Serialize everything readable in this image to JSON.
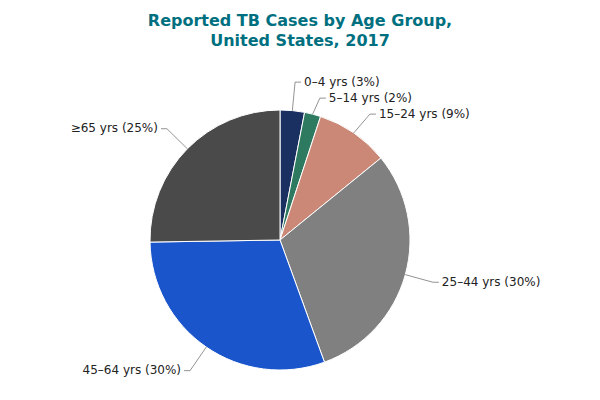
{
  "chart_data": {
    "type": "pie",
    "title": "Reported TB Cases by Age Group,\nUnited States, 2017",
    "title_color": "#007080",
    "categories": [
      "0–4 yrs (3%)",
      "5–14 yrs (2%)",
      "15–24 yrs (9%)",
      "25–44 yrs  (30%)",
      "45–64 yrs (30%)",
      "≥65 yrs (25%)"
    ],
    "values": [
      3,
      2,
      9,
      30,
      30,
      25
    ],
    "colors": [
      "#1a3060",
      "#2e7a60",
      "#cc8877",
      "#808080",
      "#1a55cc",
      "#4a4a4a"
    ]
  }
}
